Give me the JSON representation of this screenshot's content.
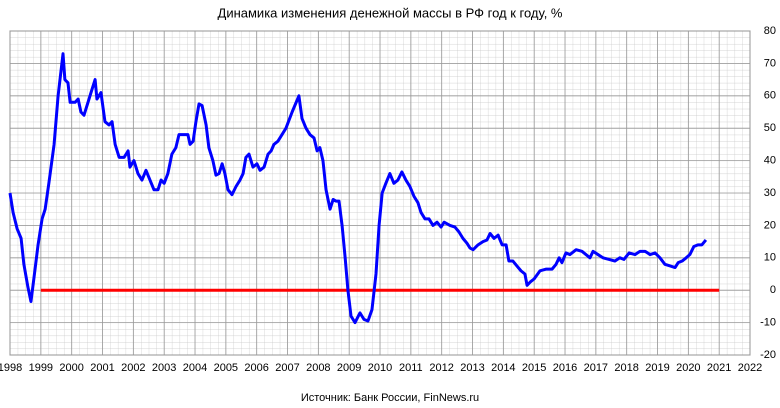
{
  "chart_data": {
    "type": "line",
    "title": "Динамика  изменения  денежной  массы  в РФ год к году, %",
    "source": "Источник:  Банк России, FinNews.ru",
    "xlim": [
      1998,
      2022
    ],
    "xticks": [
      1998,
      1999,
      2000,
      2001,
      2002,
      2003,
      2004,
      2005,
      2006,
      2007,
      2008,
      2009,
      2010,
      2011,
      2012,
      2013,
      2014,
      2015,
      2016,
      2017,
      2018,
      2019,
      2020,
      2021,
      2022
    ],
    "ylim": [
      -20,
      80
    ],
    "yticks": [
      -20,
      -10,
      0,
      10,
      20,
      30,
      40,
      50,
      60,
      70,
      80
    ],
    "grid": true,
    "reference_line": {
      "value": 0,
      "from": 1999,
      "to": 2021,
      "color": "#ff0000"
    },
    "series": [
      {
        "color": "#0000ff",
        "x": [
          1998.0,
          1998.1,
          1998.23,
          1998.36,
          1998.45,
          1998.58,
          1998.68,
          1998.78,
          1998.91,
          1999.04,
          1999.14,
          1999.26,
          1999.43,
          1999.56,
          1999.72,
          1999.78,
          1999.88,
          1999.95,
          2000.11,
          2000.21,
          2000.3,
          2000.4,
          2000.53,
          2000.66,
          2000.76,
          2000.82,
          2000.95,
          2001.08,
          2001.21,
          2001.31,
          2001.41,
          2001.54,
          2001.7,
          2001.83,
          2001.89,
          2002.02,
          2002.15,
          2002.28,
          2002.41,
          2002.54,
          2002.67,
          2002.8,
          2002.9,
          2003.0,
          2003.12,
          2003.25,
          2003.38,
          2003.48,
          2003.61,
          2003.77,
          2003.84,
          2003.94,
          2004.03,
          2004.13,
          2004.23,
          2004.36,
          2004.45,
          2004.58,
          2004.68,
          2004.78,
          2004.88,
          2004.97,
          2005.07,
          2005.2,
          2005.33,
          2005.46,
          2005.56,
          2005.65,
          2005.75,
          2005.88,
          2006.01,
          2006.11,
          2006.24,
          2006.37,
          2006.47,
          2006.56,
          2006.69,
          2006.82,
          2006.95,
          2007.15,
          2007.37,
          2007.47,
          2007.6,
          2007.73,
          2007.86,
          2007.96,
          2008.05,
          2008.15,
          2008.25,
          2008.38,
          2008.48,
          2008.57,
          2008.67,
          2008.77,
          2008.87,
          2008.96,
          2009.06,
          2009.19,
          2009.35,
          2009.48,
          2009.61,
          2009.74,
          2009.87,
          2009.97,
          2010.07,
          2010.19,
          2010.32,
          2010.45,
          2010.58,
          2010.71,
          2010.84,
          2010.97,
          2011.1,
          2011.23,
          2011.33,
          2011.46,
          2011.59,
          2011.72,
          2011.85,
          2011.98,
          2012.08,
          2012.27,
          2012.43,
          2012.56,
          2012.69,
          2012.82,
          2012.92,
          2013.02,
          2013.18,
          2013.34,
          2013.47,
          2013.57,
          2013.7,
          2013.83,
          2013.96,
          2014.09,
          2014.18,
          2014.31,
          2014.44,
          2014.57,
          2014.7,
          2014.77,
          2014.87,
          2015.0,
          2015.19,
          2015.38,
          2015.58,
          2015.71,
          2015.81,
          2015.9,
          2016.03,
          2016.16,
          2016.36,
          2016.55,
          2016.68,
          2016.81,
          2016.91,
          2017.07,
          2017.23,
          2017.43,
          2017.62,
          2017.78,
          2017.91,
          2018.08,
          2018.27,
          2018.43,
          2018.6,
          2018.76,
          2018.92,
          2019.08,
          2019.24,
          2019.41,
          2019.57,
          2019.67,
          2019.8,
          2019.93,
          2020.05,
          2020.18,
          2020.31,
          2020.44,
          2020.57
        ],
        "values": [
          30,
          24,
          19,
          16,
          8,
          1,
          -3.5,
          4,
          14,
          22,
          25,
          33,
          45,
          60,
          73,
          65,
          64,
          58,
          58,
          59,
          55,
          54,
          58,
          62,
          65,
          59,
          61,
          52,
          51,
          52,
          45,
          41,
          41,
          43,
          38,
          40,
          36,
          34,
          37,
          34,
          31,
          31,
          34,
          33,
          36,
          42,
          44,
          48,
          48,
          48,
          45,
          46,
          52,
          57.5,
          57,
          51,
          44,
          40,
          35.5,
          36,
          39,
          36,
          31,
          29.5,
          32,
          34,
          36,
          41,
          42,
          38,
          39,
          37,
          38,
          42,
          43,
          45,
          46,
          48,
          50,
          55,
          60,
          53,
          50,
          48,
          47,
          43,
          44,
          40,
          31,
          25,
          28,
          27.5,
          27.5,
          20,
          10,
          0,
          -8,
          -10,
          -7,
          -9,
          -9.5,
          -6,
          5,
          20,
          30,
          33,
          36,
          33,
          34,
          36.5,
          34,
          32,
          29,
          27,
          24,
          22,
          22,
          20,
          21,
          19.5,
          21,
          20,
          19.5,
          18,
          16,
          14.5,
          13,
          12.5,
          14,
          15,
          15.5,
          17.5,
          16,
          17,
          14,
          14,
          9,
          9,
          7.5,
          6,
          5,
          1.5,
          2.5,
          3.5,
          6,
          6.5,
          6.5,
          8,
          10,
          8.5,
          11.5,
          11,
          12.5,
          12,
          11,
          10,
          12,
          11,
          10,
          9.5,
          9,
          10,
          9.5,
          11.5,
          11,
          12,
          12,
          11,
          11.5,
          10,
          8,
          7.5,
          7,
          8.5,
          9,
          10,
          11,
          13.5,
          14,
          14,
          15.5
        ]
      }
    ]
  }
}
